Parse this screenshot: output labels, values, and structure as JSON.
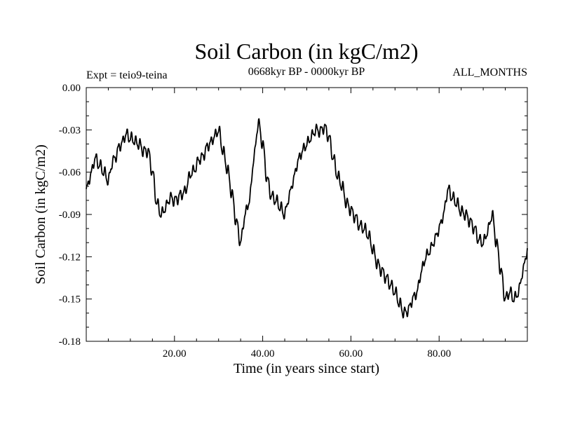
{
  "chart_data": {
    "type": "line",
    "title": "Soil Carbon (in kgC/m2)",
    "subtitle_left": "Expt = teio9-teina",
    "subtitle_center": "0668kyr BP - 0000kyr BP",
    "subtitle_right": "ALL_MONTHS",
    "xlabel": "Time (in years since start)",
    "ylabel": "Soil Carbon (in kgC/m2)",
    "xlim": [
      0,
      100
    ],
    "ylim": [
      -0.18,
      0.0
    ],
    "xticks": [
      20,
      40,
      60,
      80
    ],
    "xtick_labels": [
      "20.00",
      "40.00",
      "60.00",
      "80.00"
    ],
    "yticks": [
      0.0,
      -0.03,
      -0.06,
      -0.09,
      -0.12,
      -0.15,
      -0.18
    ],
    "ytick_labels": [
      "0.00",
      "-0.03",
      "-0.06",
      "-0.09",
      "-0.12",
      "-0.15",
      "-0.18"
    ],
    "series": [
      {
        "name": "Soil Carbon",
        "color": "#000000",
        "x": [
          0,
          1,
          2,
          3,
          4,
          5,
          6,
          8,
          9,
          10,
          12,
          13,
          14,
          15,
          16,
          17,
          18,
          19,
          20,
          22,
          24,
          26,
          28,
          29,
          30,
          31,
          32,
          33,
          34,
          35,
          36,
          37,
          38,
          39,
          40,
          41,
          42,
          43,
          44,
          45,
          46,
          47,
          48,
          49,
          50,
          51,
          52,
          53,
          54,
          55,
          56,
          57,
          58,
          59,
          60,
          61,
          62,
          63,
          64,
          65,
          66,
          67,
          68,
          69,
          70,
          71,
          72,
          73,
          74,
          75,
          76,
          77,
          78,
          79,
          80,
          81,
          82,
          83,
          84,
          85,
          86,
          87,
          88,
          89,
          90,
          91,
          92,
          93,
          94,
          95,
          96,
          97,
          98,
          99,
          100
        ],
        "values": [
          -0.073,
          -0.062,
          -0.05,
          -0.055,
          -0.06,
          -0.066,
          -0.052,
          -0.04,
          -0.033,
          -0.036,
          -0.04,
          -0.045,
          -0.045,
          -0.06,
          -0.082,
          -0.09,
          -0.085,
          -0.078,
          -0.08,
          -0.075,
          -0.06,
          -0.05,
          -0.04,
          -0.035,
          -0.03,
          -0.045,
          -0.058,
          -0.075,
          -0.095,
          -0.11,
          -0.09,
          -0.08,
          -0.05,
          -0.025,
          -0.04,
          -0.065,
          -0.077,
          -0.08,
          -0.085,
          -0.09,
          -0.077,
          -0.065,
          -0.052,
          -0.045,
          -0.04,
          -0.035,
          -0.03,
          -0.031,
          -0.028,
          -0.035,
          -0.05,
          -0.063,
          -0.07,
          -0.082,
          -0.087,
          -0.092,
          -0.098,
          -0.1,
          -0.105,
          -0.115,
          -0.125,
          -0.13,
          -0.135,
          -0.14,
          -0.145,
          -0.153,
          -0.16,
          -0.158,
          -0.15,
          -0.145,
          -0.13,
          -0.12,
          -0.115,
          -0.108,
          -0.1,
          -0.09,
          -0.072,
          -0.078,
          -0.082,
          -0.088,
          -0.09,
          -0.095,
          -0.1,
          -0.108,
          -0.11,
          -0.102,
          -0.09,
          -0.11,
          -0.13,
          -0.15,
          -0.145,
          -0.15,
          -0.145,
          -0.13,
          -0.115
        ]
      }
    ]
  }
}
